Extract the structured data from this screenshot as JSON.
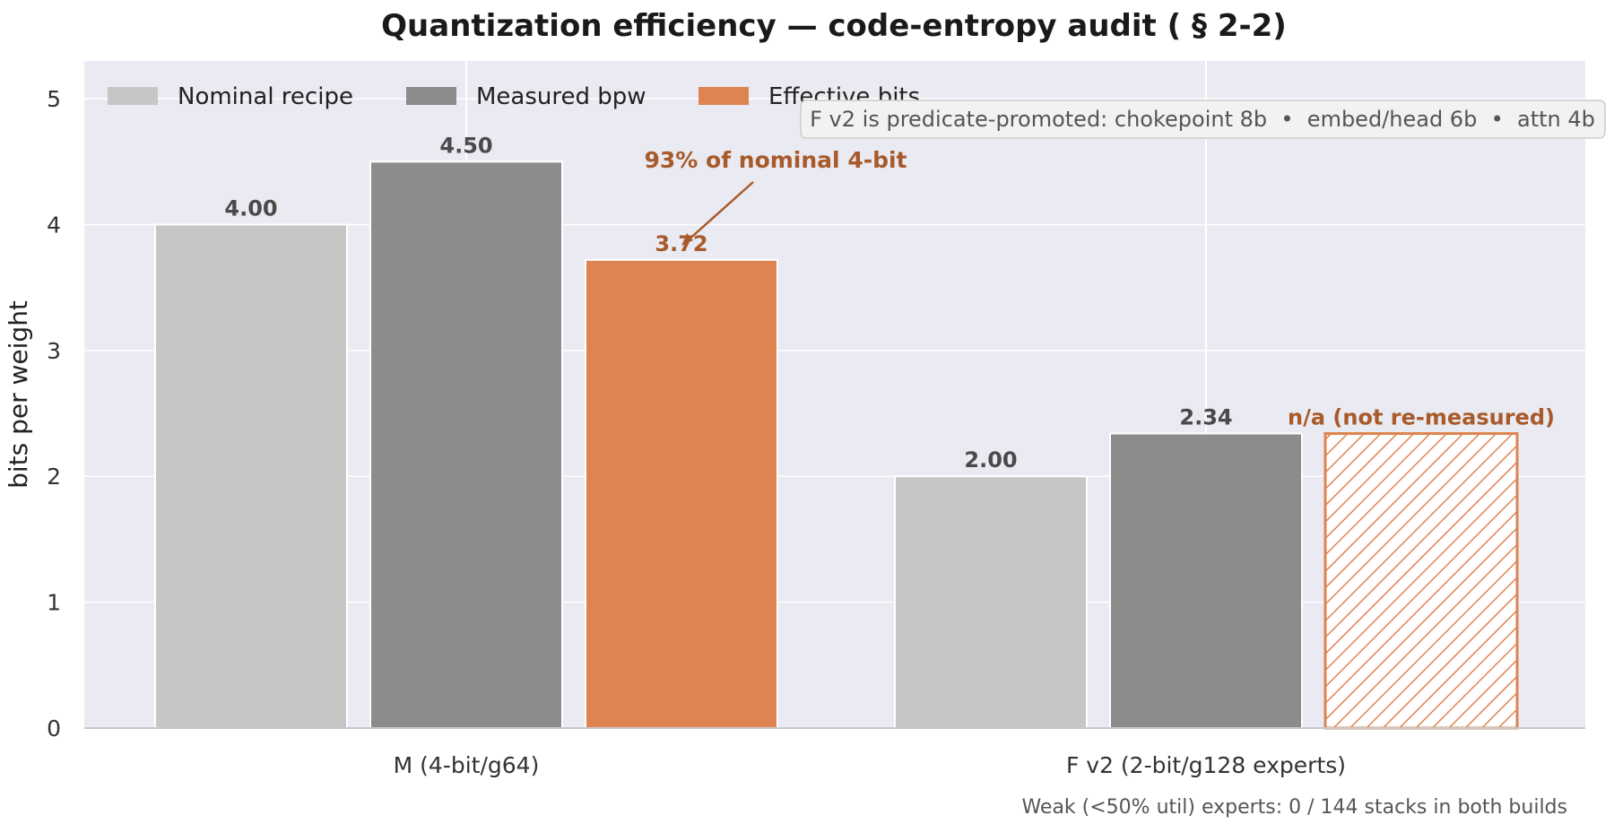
{
  "chart_data": {
    "type": "bar",
    "title": "Quantization efficiency — code-entropy audit ( § 2-2)",
    "ylabel": "bits per weight",
    "xlabel": "",
    "ylim": [
      0,
      5.3
    ],
    "yticks": [
      0,
      1,
      2,
      3,
      4,
      5
    ],
    "grid": true,
    "legend_position": "top-left",
    "categories": [
      "M (4-bit/g64)",
      "F v2 (2-bit/g128 experts)"
    ],
    "series": [
      {
        "name": "Nominal recipe",
        "color": "#c6c6c6",
        "values": [
          4.0,
          2.0
        ],
        "labels": [
          "4.00",
          "2.00"
        ]
      },
      {
        "name": "Measured bpw",
        "color": "#8c8c8c",
        "values": [
          4.5,
          2.34
        ],
        "labels": [
          "4.50",
          "2.34"
        ]
      },
      {
        "name": "Effective bits",
        "color": "#de8452",
        "values": [
          3.72,
          2.34
        ],
        "labels": [
          "3.72",
          "n/a (not re-measured)"
        ],
        "hatched": [
          false,
          true
        ]
      }
    ],
    "annotations": {
      "arrow_text": "93% of nominal 4-bit",
      "note_box": "F v2 is predicate-promoted: chokepoint 8b  •  embed/head 6b  •  attn 4b",
      "footnote": "Weak (<50% util) experts: 0 / 144 stacks in both builds"
    }
  }
}
